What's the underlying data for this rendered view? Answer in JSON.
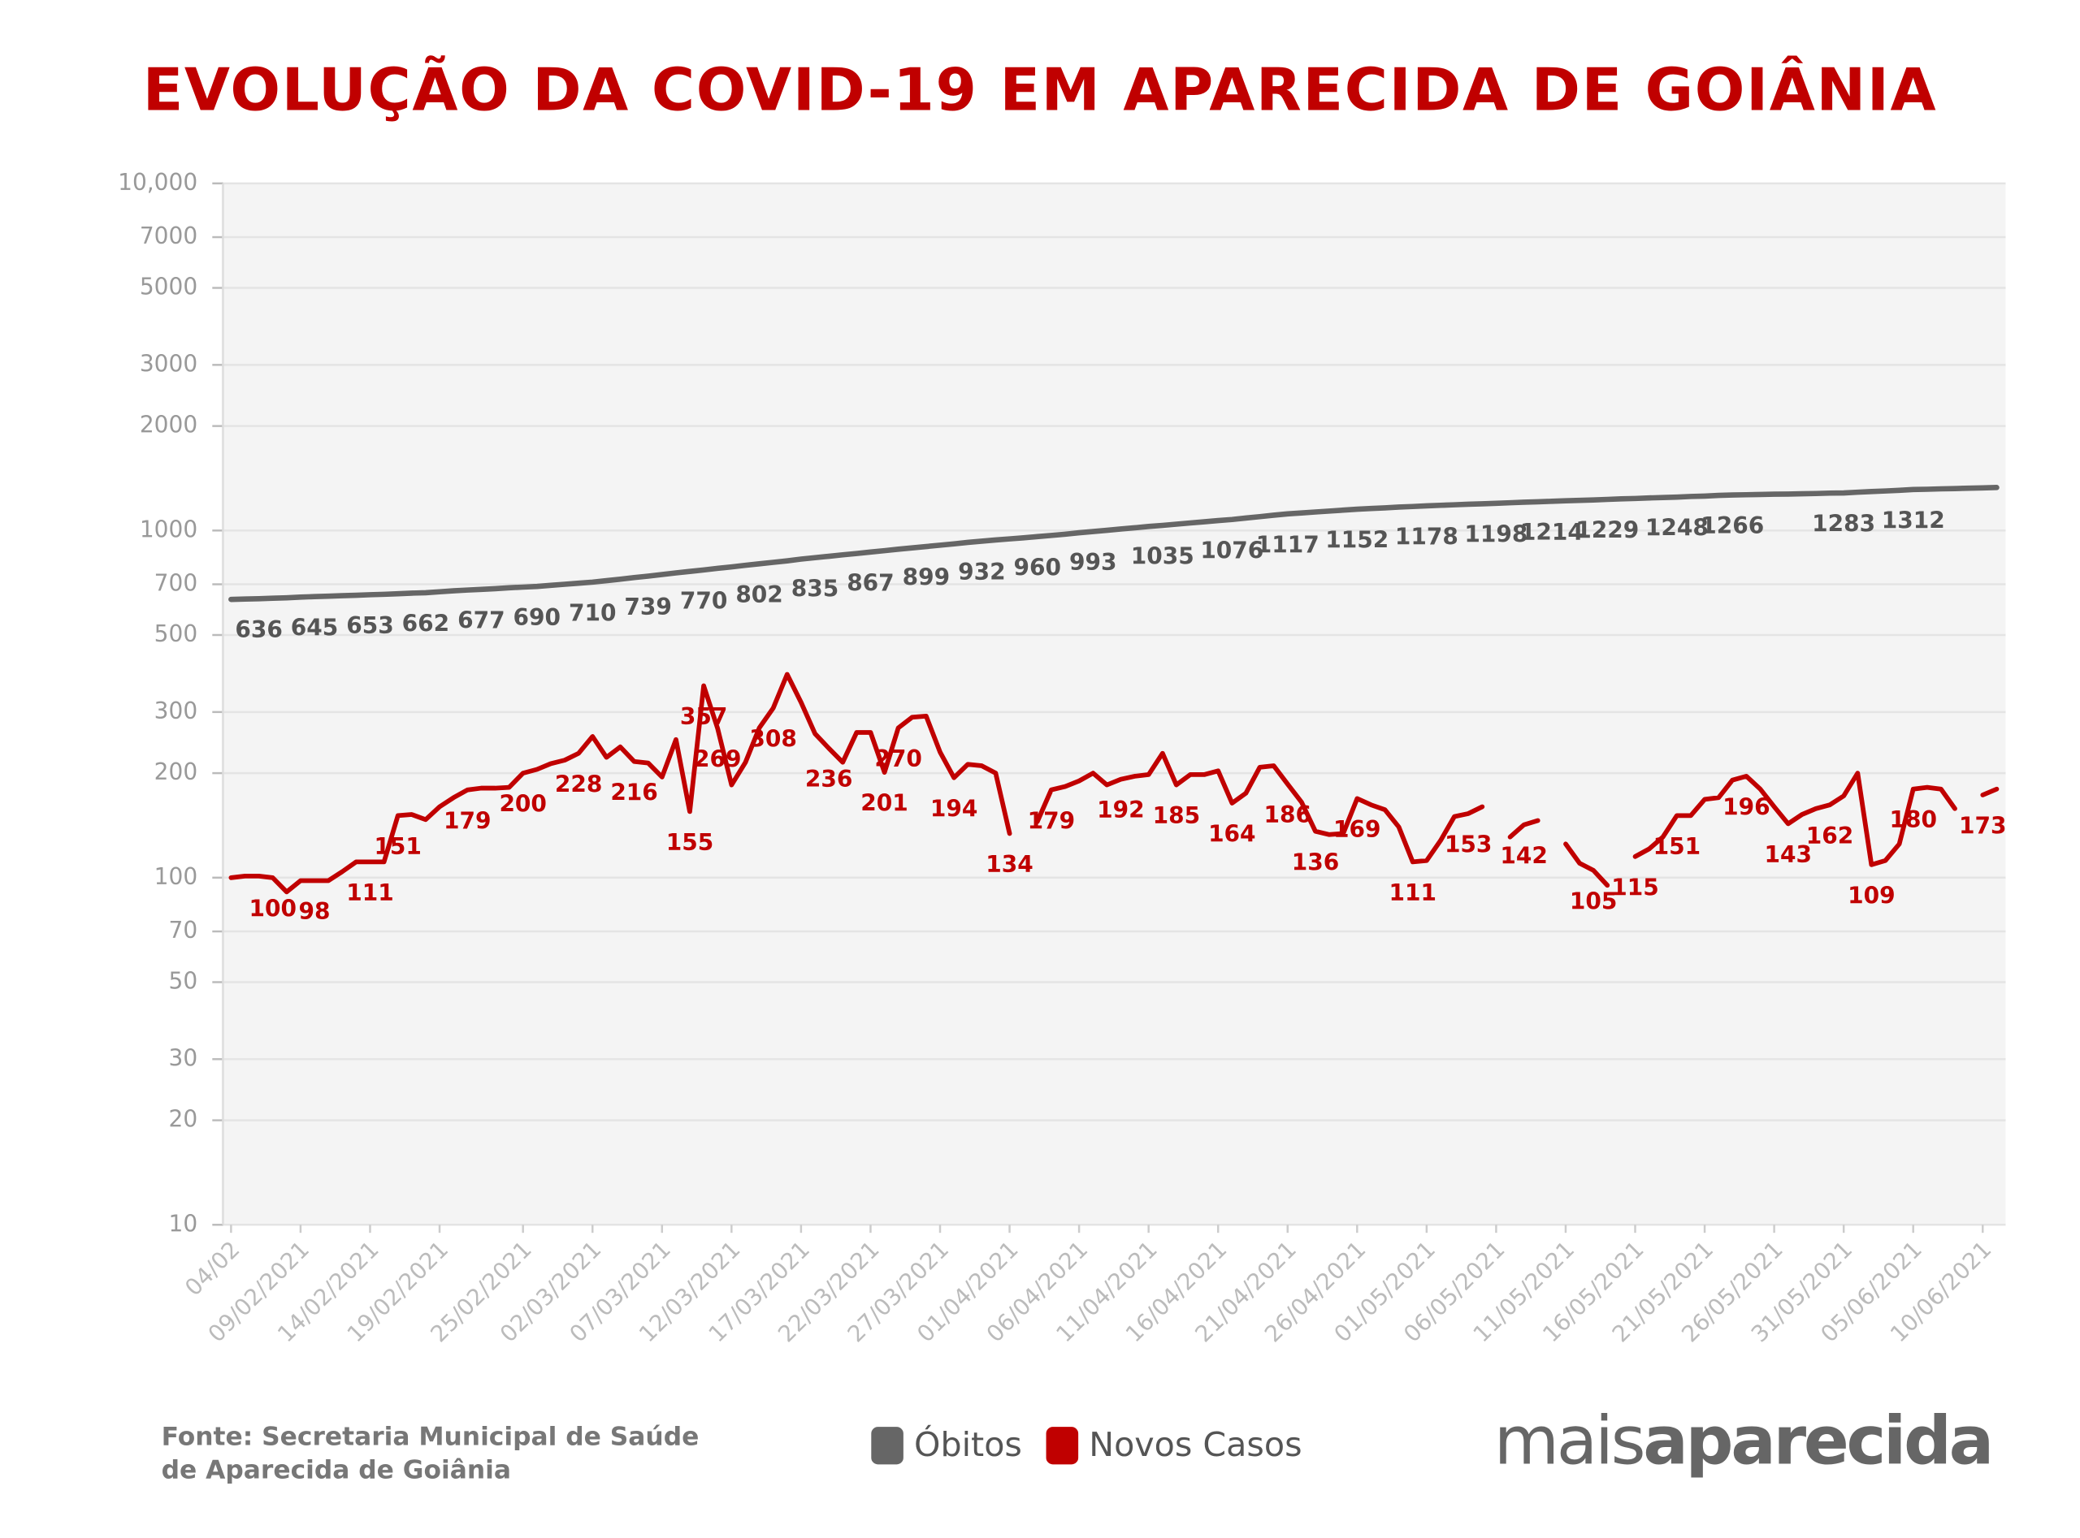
{
  "chart_data": {
    "type": "line",
    "title": "EVOLUÇÃO DA COVID-19 EM APARECIDA DE GOIÂNIA",
    "source": [
      "Fonte: Secretaria Municipal de Saúde",
      "de Aparecida de Goiânia"
    ],
    "brand": [
      "mais",
      "aparecida"
    ],
    "log_y": true,
    "grid": true,
    "legend": "bottom",
    "ylim": [
      10,
      10000
    ],
    "yticks": [
      10,
      20,
      30,
      50,
      70,
      100,
      200,
      300,
      500,
      700,
      1000,
      2000,
      3000,
      5000,
      7000,
      {
        "value": 10000,
        "label": "10,000"
      }
    ],
    "categories": [
      "04/02",
      null,
      null,
      null,
      null,
      "09/02/2021",
      null,
      null,
      null,
      null,
      "14/02/2021",
      null,
      null,
      null,
      null,
      "19/02/2021",
      null,
      null,
      null,
      null,
      null,
      "25/02/2021",
      null,
      null,
      null,
      null,
      "02/03/2021",
      null,
      null,
      null,
      null,
      "07/03/2021",
      null,
      null,
      null,
      null,
      "12/03/2021",
      null,
      null,
      null,
      null,
      "17/03/2021",
      null,
      null,
      null,
      null,
      "22/03/2021",
      null,
      null,
      null,
      null,
      "27/03/2021",
      null,
      null,
      null,
      null,
      "01/04/2021",
      null,
      null,
      null,
      null,
      "06/04/2021",
      null,
      null,
      null,
      null,
      "11/04/2021",
      null,
      null,
      null,
      null,
      "16/04/2021",
      null,
      null,
      null,
      null,
      "21/04/2021",
      null,
      null,
      null,
      null,
      "26/04/2021",
      null,
      null,
      null,
      null,
      "01/05/2021",
      null,
      null,
      null,
      null,
      "06/05/2021",
      null,
      null,
      null,
      null,
      "11/05/2021",
      null,
      null,
      null,
      null,
      "16/05/2021",
      null,
      null,
      null,
      null,
      "21/05/2021",
      null,
      null,
      null,
      null,
      "26/05/2021",
      null,
      null,
      null,
      null,
      "31/05/2021",
      null,
      null,
      null,
      null,
      "05/06/2021",
      null,
      null,
      null,
      null,
      "10/06/2021",
      null
    ],
    "series": [
      {
        "name": "Óbitos",
        "color": "#666666",
        "values": [
          633,
          635,
          636,
          638,
          640,
          643,
          645,
          647,
          649,
          651,
          653,
          655,
          657,
          660,
          662,
          666,
          670,
          674,
          677,
          680,
          684,
          687,
          690,
          695,
          700,
          705,
          710,
          717,
          724,
          732,
          739,
          747,
          755,
          762,
          770,
          778,
          786,
          794,
          802,
          810,
          818,
          827,
          835,
          843,
          851,
          859,
          867,
          875,
          883,
          891,
          899,
          907,
          915,
          924,
          932,
          939,
          946,
          953,
          960,
          968,
          976,
          985,
          993,
          1001,
          1010,
          1018,
          1027,
          1035,
          1043,
          1051,
          1060,
          1068,
          1076,
          1086,
          1096,
          1107,
          1117,
          1124,
          1131,
          1138,
          1145,
          1152,
          1157,
          1162,
          1168,
          1173,
          1178,
          1182,
          1186,
          1190,
          1194,
          1198,
          1202,
          1206,
          1210,
          1214,
          1218,
          1222,
          1225,
          1229,
          1233,
          1237,
          1241,
          1244,
          1248,
          1253,
          1257,
          1262,
          1266,
          1268,
          1270,
          1272,
          1274,
          1276,
          1278,
          1281,
          1283,
          1289,
          1295,
          1300,
          1306,
          1312,
          1315,
          1318,
          1321,
          1324,
          1327,
          1330
        ],
        "value_labels": [
          null,
          null,
          "636",
          null,
          null,
          null,
          "645",
          null,
          null,
          null,
          "653",
          null,
          null,
          null,
          "662",
          null,
          null,
          null,
          "677",
          null,
          null,
          null,
          "690",
          null,
          null,
          null,
          "710",
          null,
          null,
          null,
          "739",
          null,
          null,
          null,
          "770",
          null,
          null,
          null,
          "802",
          null,
          null,
          null,
          "835",
          null,
          null,
          null,
          "867",
          null,
          null,
          null,
          "899",
          null,
          null,
          null,
          "932",
          null,
          null,
          null,
          "960",
          null,
          null,
          null,
          "993",
          null,
          null,
          null,
          null,
          "1035",
          null,
          null,
          null,
          null,
          "1076",
          null,
          null,
          null,
          "1117",
          null,
          null,
          null,
          null,
          "1152",
          null,
          null,
          null,
          null,
          "1178",
          null,
          null,
          null,
          null,
          "1198",
          null,
          null,
          null,
          "1214",
          null,
          null,
          null,
          "1229",
          null,
          null,
          null,
          null,
          "1248",
          null,
          null,
          null,
          "1266",
          null,
          null,
          null,
          null,
          null,
          null,
          null,
          "1283",
          null,
          null,
          null,
          null,
          "1312",
          null,
          null,
          null,
          null,
          null,
          null
        ]
      },
      {
        "name": "Novos Casos",
        "color": "#c00000",
        "values": [
          100,
          101,
          101,
          100,
          91,
          98,
          98,
          98,
          104,
          111,
          111,
          111,
          151,
          152,
          147,
          160,
          170,
          179,
          181,
          181,
          182,
          200,
          205,
          213,
          218,
          228,
          255,
          222,
          238,
          216,
          214,
          195,
          250,
          155,
          357,
          269,
          185,
          215,
          270,
          308,
          385,
          320,
          260,
          236,
          215,
          262,
          262,
          201,
          270,
          290,
          292,
          230,
          194,
          212,
          210,
          200,
          134,
          null,
          145,
          179,
          183,
          190,
          200,
          185,
          192,
          196,
          198,
          228,
          185,
          198,
          198,
          203,
          164,
          175,
          208,
          210,
          186,
          165,
          136,
          133,
          134,
          169,
          162,
          157,
          140,
          111,
          112,
          128,
          150,
          153,
          160,
          null,
          131,
          142,
          146,
          null,
          125,
          110,
          105,
          95,
          null,
          115,
          121,
          131,
          151,
          151,
          168,
          170,
          191,
          196,
          180,
          160,
          143,
          152,
          158,
          162,
          172,
          200,
          109,
          112,
          125,
          180,
          182,
          180,
          158,
          null,
          173,
          180
        ],
        "value_labels": [
          null,
          null,
          null,
          "100",
          null,
          null,
          "98",
          null,
          null,
          null,
          "111",
          null,
          "151",
          null,
          null,
          null,
          null,
          "179",
          null,
          null,
          null,
          "200",
          null,
          null,
          null,
          "228",
          null,
          null,
          null,
          "216",
          null,
          null,
          null,
          "155",
          "357",
          "269",
          null,
          null,
          null,
          "308",
          null,
          null,
          null,
          "236",
          null,
          null,
          null,
          "201",
          "270",
          null,
          null,
          null,
          "194",
          null,
          null,
          null,
          "134",
          null,
          null,
          "179",
          null,
          null,
          null,
          null,
          "192",
          null,
          null,
          null,
          "185",
          null,
          null,
          null,
          "164",
          null,
          null,
          null,
          "186",
          null,
          "136",
          null,
          null,
          "169",
          null,
          null,
          null,
          "111",
          null,
          null,
          null,
          "153",
          null,
          null,
          null,
          "142",
          null,
          null,
          null,
          null,
          "105",
          null,
          null,
          "115",
          null,
          null,
          "151",
          null,
          null,
          null,
          null,
          "196",
          null,
          null,
          "143",
          null,
          null,
          "162",
          null,
          null,
          "109",
          null,
          null,
          "180",
          null,
          null,
          null,
          null,
          "173",
          null
        ]
      }
    ]
  }
}
